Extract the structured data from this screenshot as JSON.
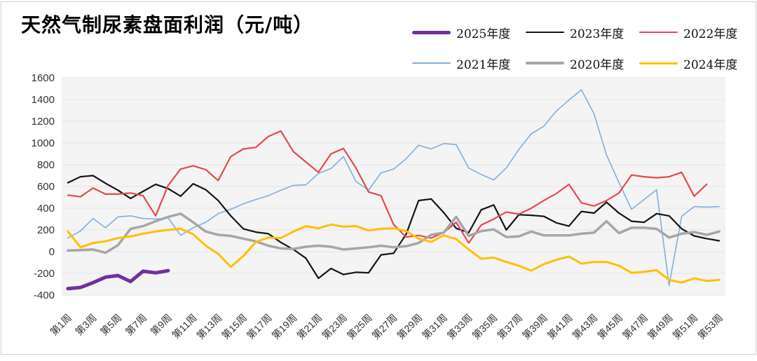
{
  "title": "天然气制尿素盘面利润（元/吨）",
  "chart_data": {
    "type": "line",
    "title": "天然气制尿素盘面利润（元/吨）",
    "xlabel": "",
    "ylabel": "",
    "ylim": [
      -400,
      1600
    ],
    "y_ticks": [
      1600,
      1400,
      1200,
      1000,
      800,
      600,
      400,
      200,
      0,
      -200,
      -400
    ],
    "n_weeks": 53,
    "x_tick_labels": [
      "第1周",
      "第3周",
      "第5周",
      "第7周",
      "第9周",
      "第11周",
      "第13周",
      "第15周",
      "第17周",
      "第19周",
      "第21周",
      "第23周",
      "第25周",
      "第27周",
      "第29周",
      "第31周",
      "第33周",
      "第35周",
      "第37周",
      "第39周",
      "第41周",
      "第43周",
      "第45周",
      "第47周",
      "第49周",
      "第51周",
      "第53周"
    ],
    "grid": "horizontal",
    "legend_position": "top-right",
    "plot_bg": "#f4f4f4",
    "grid_color": "#e4e4e4",
    "series": [
      {
        "name": "2025年度",
        "color": "#7030A0",
        "width": 5,
        "z": 6,
        "values": [
          -340,
          -330,
          -285,
          -235,
          -220,
          -275,
          -180,
          -195,
          -175
        ]
      },
      {
        "name": "2023年度",
        "color": "#141414",
        "width": 2.2,
        "z": 2,
        "values": [
          635,
          690,
          700,
          630,
          565,
          490,
          555,
          620,
          580,
          510,
          625,
          570,
          470,
          330,
          210,
          180,
          165,
          85,
          20,
          -60,
          -245,
          -155,
          -210,
          -190,
          -195,
          -30,
          -15,
          160,
          470,
          485,
          360,
          215,
          175,
          385,
          430,
          200,
          340,
          335,
          325,
          265,
          235,
          370,
          355,
          455,
          355,
          280,
          270,
          350,
          330,
          210,
          145,
          120,
          100
        ]
      },
      {
        "name": "2022年度",
        "color": "#E8484F",
        "width": 2.2,
        "z": 3,
        "values": [
          520,
          505,
          585,
          530,
          530,
          540,
          515,
          330,
          610,
          760,
          790,
          755,
          655,
          875,
          945,
          960,
          1060,
          1110,
          920,
          825,
          730,
          900,
          950,
          770,
          550,
          515,
          250,
          135,
          150,
          125,
          175,
          270,
          80,
          245,
          300,
          365,
          345,
          400,
          470,
          535,
          620,
          450,
          420,
          470,
          540,
          705,
          690,
          680,
          690,
          730,
          510,
          620
        ]
      },
      {
        "name": "2021年度",
        "color": "#7EAFDE",
        "width": 1.6,
        "z": 1,
        "values": [
          125,
          190,
          305,
          220,
          320,
          330,
          305,
          300,
          310,
          150,
          220,
          270,
          350,
          390,
          440,
          480,
          515,
          565,
          610,
          615,
          720,
          765,
          875,
          645,
          565,
          725,
          760,
          855,
          980,
          945,
          995,
          985,
          770,
          710,
          660,
          770,
          940,
          1085,
          1155,
          1295,
          1395,
          1490,
          1270,
          890,
          635,
          390,
          480,
          570,
          -310,
          325,
          415,
          410,
          415
        ]
      },
      {
        "name": "2020年度",
        "color": "#A6A6A6",
        "width": 3.5,
        "z": 4,
        "values": [
          10,
          15,
          20,
          -10,
          60,
          210,
          235,
          280,
          320,
          350,
          270,
          185,
          155,
          145,
          120,
          95,
          55,
          30,
          25,
          45,
          55,
          45,
          20,
          30,
          40,
          55,
          40,
          50,
          80,
          155,
          175,
          320,
          145,
          190,
          205,
          135,
          140,
          185,
          150,
          150,
          150,
          165,
          175,
          280,
          170,
          220,
          220,
          210,
          130,
          165,
          180,
          155,
          185
        ]
      },
      {
        "name": "2024年度",
        "color": "#FFC000",
        "width": 3,
        "z": 5,
        "values": [
          185,
          40,
          80,
          95,
          125,
          140,
          165,
          185,
          200,
          210,
          160,
          55,
          -20,
          -140,
          -40,
          90,
          130,
          125,
          185,
          235,
          215,
          250,
          230,
          235,
          195,
          210,
          215,
          190,
          120,
          90,
          150,
          115,
          20,
          -65,
          -55,
          -95,
          -130,
          -175,
          -115,
          -75,
          -45,
          -110,
          -95,
          -95,
          -130,
          -195,
          -185,
          -170,
          -260,
          -285,
          -245,
          -270,
          -260
        ]
      }
    ]
  }
}
